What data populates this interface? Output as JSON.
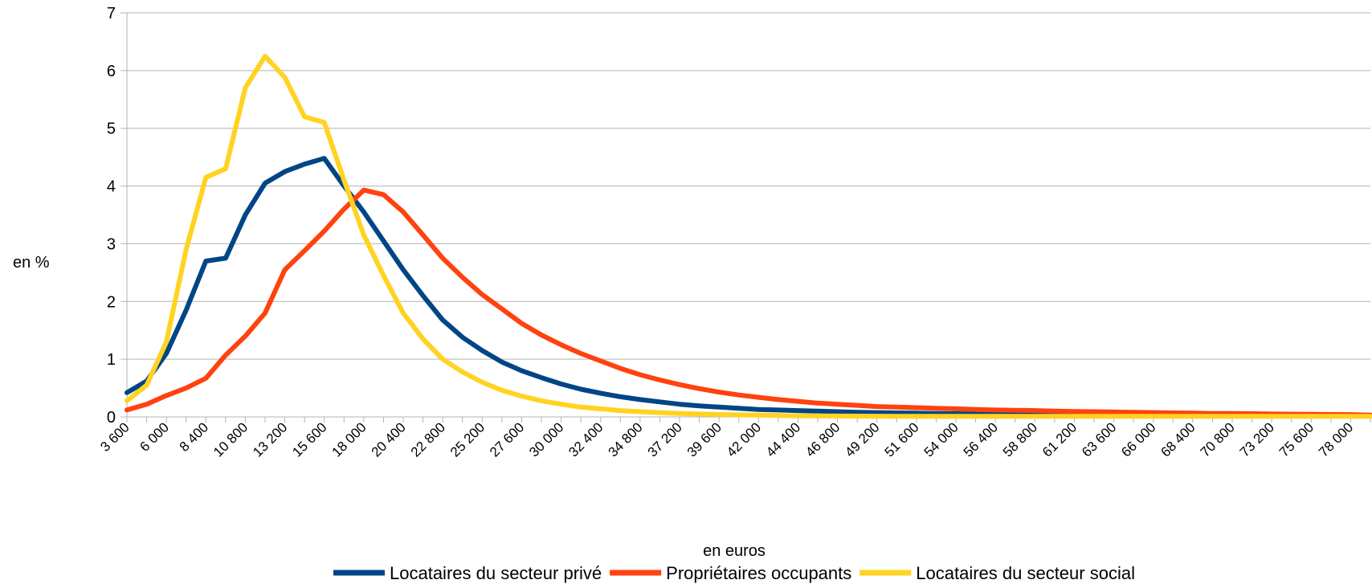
{
  "chart_data": {
    "type": "line",
    "title": "",
    "xlabel": "en euros",
    "ylabel": "en %",
    "ylim": [
      0,
      7
    ],
    "yticks": [
      0,
      1,
      2,
      3,
      4,
      5,
      6,
      7
    ],
    "grid": true,
    "legend_position": "bottom",
    "x": [
      3600,
      4800,
      6000,
      7200,
      8400,
      9600,
      10800,
      12000,
      13200,
      14400,
      15600,
      16800,
      18000,
      19200,
      20400,
      21600,
      22800,
      24000,
      25200,
      26400,
      27600,
      28800,
      30000,
      31200,
      32400,
      33600,
      34800,
      36000,
      37200,
      38400,
      39600,
      40800,
      42000,
      43200,
      44400,
      45600,
      46800,
      48000,
      49200,
      50400,
      51600,
      52800,
      54000,
      55200,
      56400,
      57600,
      58800,
      60000,
      61200,
      62400,
      63600,
      64800,
      66000,
      67200,
      68400,
      69600,
      70800,
      72000,
      73200,
      74400,
      75600,
      76800,
      78000,
      79200
    ],
    "x_tick_labels": [
      "3 600",
      "6 000",
      "8 400",
      "10 800",
      "13 200",
      "15 600",
      "18 000",
      "20 400",
      "22 800",
      "25 200",
      "27 600",
      "30 000",
      "32 400",
      "34 800",
      "37 200",
      "39 600",
      "42 000",
      "44 400",
      "46 800",
      "49 200",
      "51 600",
      "54 000",
      "56 400",
      "58 800",
      "61 200",
      "63 600",
      "66 000",
      "68 400",
      "70 800",
      "73 200",
      "75 600",
      "78 000"
    ],
    "series": [
      {
        "name": "Locataires du secteur privé",
        "color": "#004586",
        "values": [
          0.42,
          0.62,
          1.1,
          1.85,
          2.7,
          2.75,
          3.5,
          4.05,
          4.25,
          4.38,
          4.48,
          4.0,
          3.55,
          3.05,
          2.55,
          2.1,
          1.68,
          1.38,
          1.15,
          0.95,
          0.8,
          0.68,
          0.57,
          0.48,
          0.41,
          0.35,
          0.3,
          0.26,
          0.22,
          0.19,
          0.17,
          0.15,
          0.13,
          0.12,
          0.11,
          0.1,
          0.09,
          0.08,
          0.075,
          0.07,
          0.065,
          0.06,
          0.055,
          0.05,
          0.048,
          0.045,
          0.042,
          0.04,
          0.038,
          0.036,
          0.034,
          0.032,
          0.03,
          0.028,
          0.027,
          0.026,
          0.025,
          0.024,
          0.023,
          0.022,
          0.021,
          0.02,
          0.02,
          0.02
        ]
      },
      {
        "name": "Propriétaires occupants",
        "color": "#ff420e",
        "values": [
          0.12,
          0.22,
          0.37,
          0.5,
          0.67,
          1.07,
          1.4,
          1.8,
          2.55,
          2.88,
          3.22,
          3.6,
          3.93,
          3.85,
          3.55,
          3.15,
          2.75,
          2.42,
          2.12,
          1.87,
          1.62,
          1.42,
          1.25,
          1.1,
          0.97,
          0.84,
          0.73,
          0.64,
          0.56,
          0.49,
          0.43,
          0.38,
          0.34,
          0.3,
          0.27,
          0.24,
          0.22,
          0.2,
          0.18,
          0.17,
          0.16,
          0.15,
          0.14,
          0.13,
          0.12,
          0.115,
          0.11,
          0.1,
          0.095,
          0.09,
          0.085,
          0.08,
          0.075,
          0.07,
          0.065,
          0.06,
          0.058,
          0.055,
          0.05,
          0.048,
          0.045,
          0.042,
          0.04,
          0.03
        ]
      },
      {
        "name": "Locataires du secteur social",
        "color": "#ffd320",
        "values": [
          0.28,
          0.55,
          1.3,
          2.9,
          4.15,
          4.3,
          5.7,
          6.25,
          5.88,
          5.2,
          5.1,
          4.1,
          3.15,
          2.45,
          1.8,
          1.35,
          1.0,
          0.78,
          0.6,
          0.46,
          0.36,
          0.28,
          0.22,
          0.17,
          0.14,
          0.11,
          0.09,
          0.075,
          0.06,
          0.05,
          0.042,
          0.035,
          0.03,
          0.025,
          0.02,
          0.018,
          0.016,
          0.014,
          0.012,
          0.01,
          0.01,
          0.01,
          0.01,
          0.01,
          0.01,
          0.01,
          0.01,
          0.01,
          0.01,
          0.01,
          0.01,
          0.01,
          0.01,
          0.01,
          0.01,
          0.01,
          0.01,
          0.01,
          0.01,
          0.01,
          0.01,
          0.01,
          0.01,
          0.01
        ]
      }
    ]
  }
}
